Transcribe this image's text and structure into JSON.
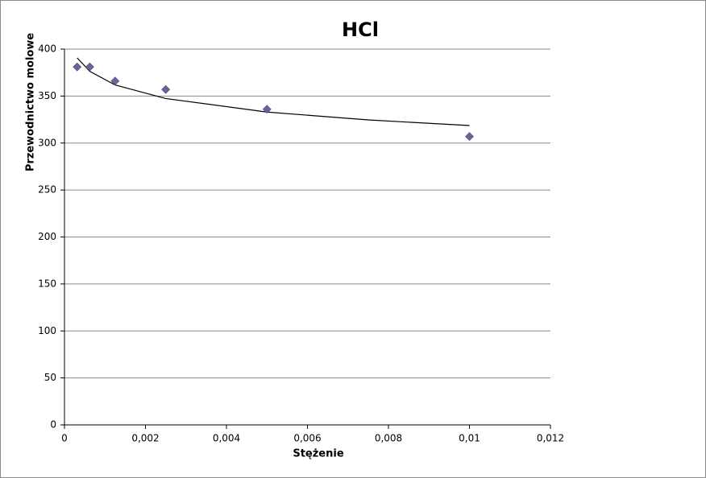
{
  "chart_data": {
    "type": "scatter",
    "title": "HCl",
    "x_label": "Stężenie",
    "y_label": "Przewodnictwo molowe",
    "series": [
      {
        "name": "HCl",
        "color": "#666699",
        "x": [
          0.0003125,
          0.000625,
          0.00125,
          0.0025,
          0.005,
          0.01
        ],
        "values": [
          381,
          381,
          366,
          357,
          336,
          307
        ]
      }
    ],
    "trendline": {
      "type": "line",
      "color": "#000000",
      "x": [
        0.0003125,
        0.000625,
        0.00125,
        0.0025,
        0.005,
        0.0075,
        0.01
      ],
      "values": [
        390.7,
        376.3,
        361.8,
        347.4,
        333.0,
        324.6,
        318.6
      ]
    },
    "xlim": [
      0,
      0.012
    ],
    "xticks": [
      0,
      {
        "value": 0.002,
        "label": "0,002"
      },
      {
        "value": 0.004,
        "label": "0,004"
      },
      {
        "value": 0.006,
        "label": "0,006"
      },
      {
        "value": 0.008,
        "label": "0,008"
      },
      {
        "value": 0.01,
        "label": "0,01"
      },
      {
        "value": 0.012,
        "label": "0,012"
      }
    ],
    "ylim": [
      0,
      400
    ],
    "yticks": [
      0,
      50,
      100,
      150,
      200,
      250,
      300,
      350,
      400
    ],
    "grid": true
  }
}
